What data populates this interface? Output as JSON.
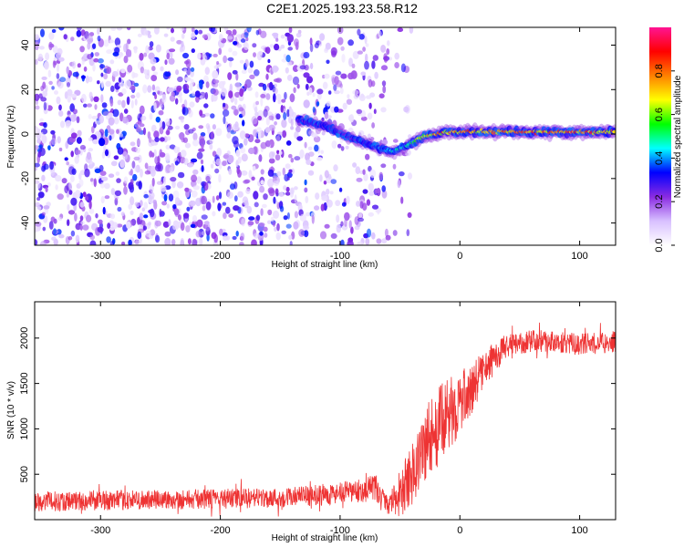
{
  "title": "C2E1.2025.193.23.58.R12",
  "chart_data": [
    {
      "type": "heatmap",
      "xlabel": "Height of straight line (km)",
      "ylabel": "Frequency (Hz)",
      "xlim": [
        -355,
        130
      ],
      "ylim": [
        -50,
        48
      ],
      "xticks": [
        -300,
        -200,
        -100,
        0,
        100
      ],
      "yticks": [
        -40,
        -20,
        0,
        20,
        40
      ],
      "colorbar": {
        "label": "Normalized spectral amplitude",
        "range": [
          0,
          1
        ],
        "ticks": [
          0.0,
          0.2,
          0.4,
          0.6,
          0.8
        ],
        "colormap": [
          "#ffffff",
          "#d8c0ff",
          "#8a2be2",
          "#0000ff",
          "#00ffff",
          "#00ff00",
          "#ffff00",
          "#ff8000",
          "#ff0000",
          "#ff1493"
        ]
      },
      "ridge": {
        "x": [
          -130,
          -110,
          -90,
          -70,
          -55,
          -40,
          -30,
          -10,
          0,
          20,
          60,
          100,
          130
        ],
        "frequency": [
          6,
          3,
          -2,
          -6,
          -8,
          -4,
          -1,
          1,
          1,
          1,
          1,
          1,
          1
        ],
        "amplitude": [
          0.3,
          0.35,
          0.3,
          0.35,
          0.45,
          0.5,
          0.75,
          0.8,
          0.8,
          0.8,
          0.8,
          0.85,
          0.8
        ]
      }
    },
    {
      "type": "line",
      "xlabel": "Height of straight line (km)",
      "ylabel": "SNR (10 * v/v)",
      "xlim": [
        -355,
        130
      ],
      "ylim": [
        0,
        2400
      ],
      "xticks": [
        -300,
        -200,
        -100,
        0,
        100
      ],
      "yticks": [
        500,
        1000,
        1500,
        2000
      ],
      "color": "#ee3333",
      "envelope": {
        "x": [
          -355,
          -300,
          -200,
          -150,
          -100,
          -80,
          -72,
          -60,
          -50,
          -40,
          -30,
          -20,
          -10,
          0,
          10,
          20,
          30,
          40,
          60,
          80,
          100,
          130
        ],
        "mean": [
          200,
          210,
          230,
          240,
          290,
          320,
          360,
          150,
          280,
          500,
          800,
          1000,
          1150,
          1280,
          1450,
          1650,
          1800,
          1920,
          1970,
          1960,
          1930,
          1960
        ],
        "spread": [
          110,
          110,
          110,
          110,
          120,
          130,
          160,
          90,
          250,
          350,
          450,
          450,
          400,
          350,
          280,
          200,
          180,
          130,
          120,
          120,
          120,
          120
        ]
      }
    }
  ]
}
